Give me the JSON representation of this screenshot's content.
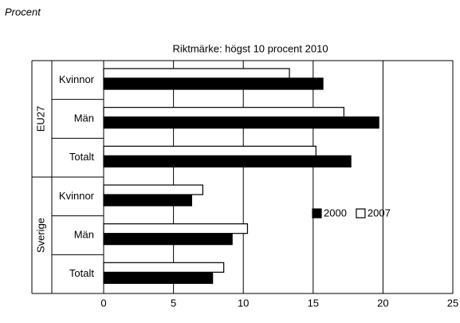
{
  "chart_data": {
    "type": "hbar",
    "y_axis_label": "Procent",
    "subtitle": "Riktmärke: högst 10 procent 2010",
    "groups": [
      {
        "name": "EU27",
        "categories": [
          "Kvinnor",
          "Män",
          "Totalt"
        ]
      },
      {
        "name": "Sverige",
        "categories": [
          "Kvinnor",
          "Män",
          "Totalt"
        ]
      }
    ],
    "series": [
      {
        "name": "2000",
        "color": "#000000",
        "values": [
          15.7,
          19.7,
          17.7,
          6.3,
          9.2,
          7.8
        ]
      },
      {
        "name": "2007",
        "color": "#ffffff",
        "values": [
          13.3,
          17.2,
          15.2,
          7.1,
          10.3,
          8.6
        ]
      }
    ],
    "xlim": [
      0,
      25
    ],
    "xticks": [
      0,
      5,
      10,
      15,
      20,
      25
    ],
    "grid": true,
    "legend": "right"
  }
}
